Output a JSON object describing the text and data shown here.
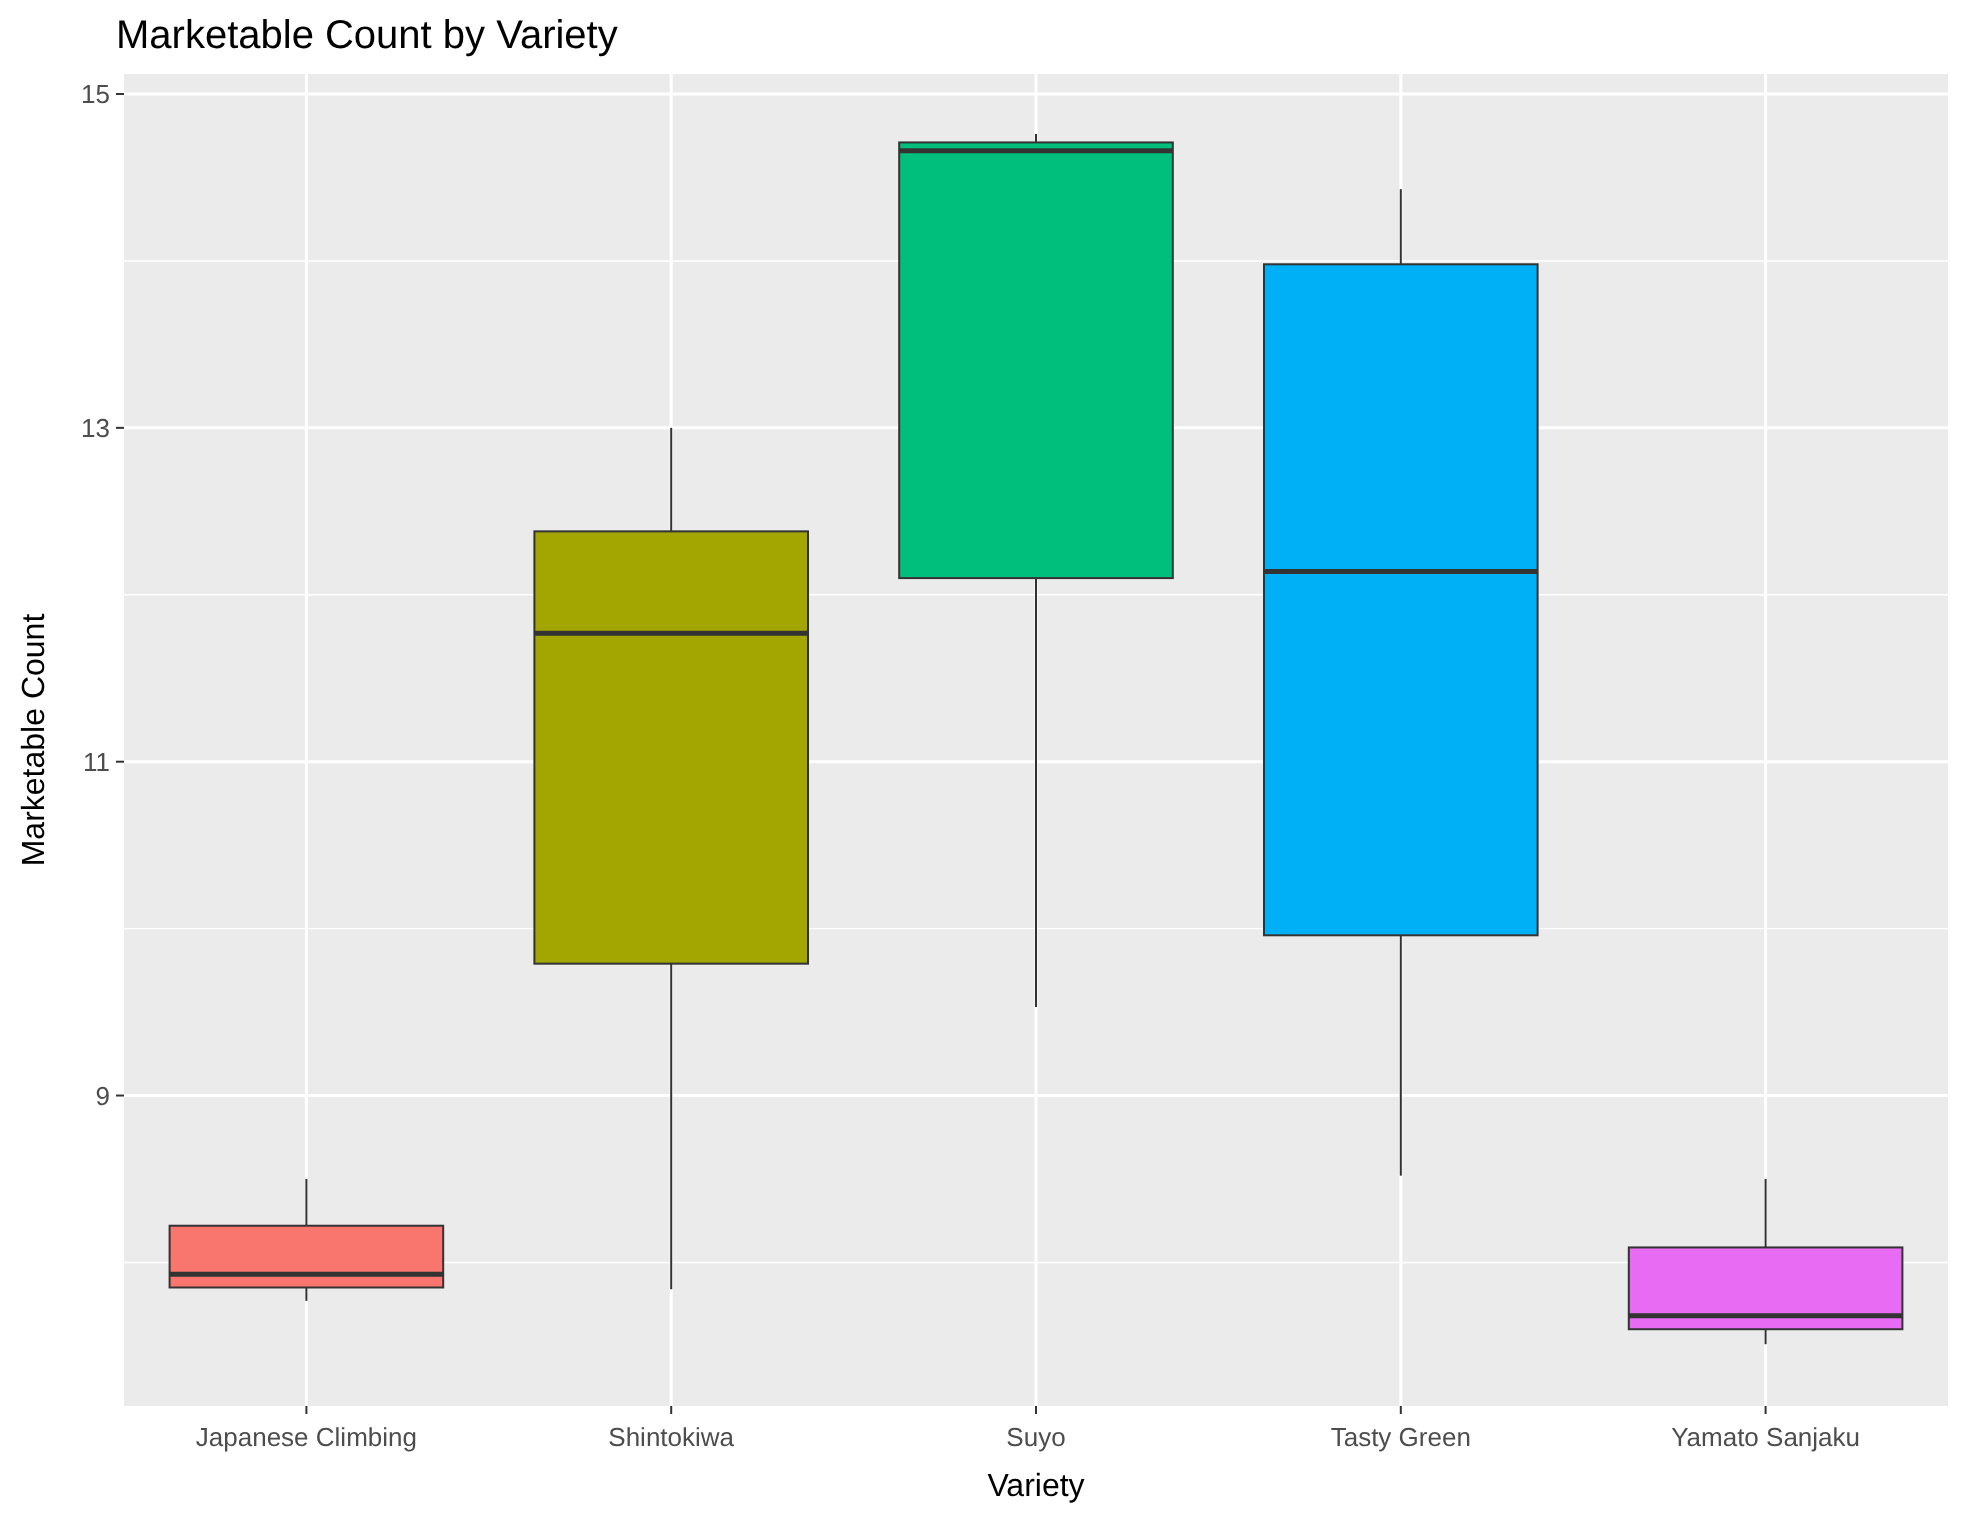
{
  "chart_data": {
    "type": "box",
    "title": "Marketable Count by Variety",
    "xlabel": "Variety",
    "ylabel": "Marketable Count",
    "categories": [
      "Japanese Climbing",
      "Shintokiwa",
      "Suyo",
      "Tasty Green",
      "Yamato Sanjaku"
    ],
    "colors": [
      "#f8766d",
      "#a3a500",
      "#00bf7d",
      "#00b0f6",
      "#e76bf3"
    ],
    "boxes": [
      {
        "low": 7.77,
        "q1": 7.85,
        "median": 7.93,
        "q3": 8.22,
        "high": 8.5
      },
      {
        "low": 7.84,
        "q1": 9.79,
        "median": 11.77,
        "q3": 12.38,
        "high": 13.0
      },
      {
        "low": 9.53,
        "q1": 12.1,
        "median": 14.66,
        "q3": 14.71,
        "high": 14.76
      },
      {
        "low": 8.52,
        "q1": 9.96,
        "median": 12.14,
        "q3": 13.98,
        "high": 14.43
      },
      {
        "low": 7.51,
        "q1": 7.6,
        "median": 7.68,
        "q3": 8.09,
        "high": 8.5
      }
    ],
    "ylim": [
      7.14,
      15.12
    ],
    "yticks": [
      9,
      11,
      13,
      15
    ],
    "grid": true
  }
}
